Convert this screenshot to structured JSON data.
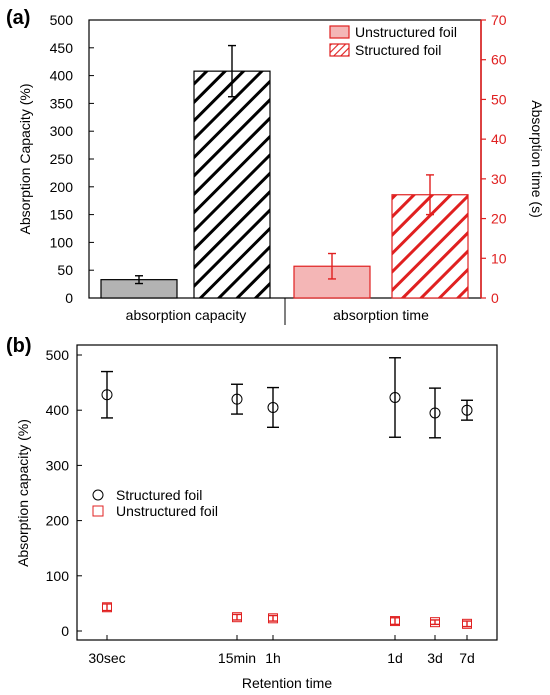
{
  "colors": {
    "black": "#000000",
    "red": "#e02020",
    "unstructured_fill": "#f4b6b6",
    "unstructured_gray": "#b3b3b3"
  },
  "chart_data": [
    {
      "type": "bar",
      "panel_label": "(a)",
      "categories": [
        "absorption capacity",
        "absorption time"
      ],
      "ylabel": "Absorption Capacity (%)",
      "ylabel_right": "Absorption time (s)",
      "ylim": [
        0,
        500
      ],
      "yticks": [
        0,
        50,
        100,
        150,
        200,
        250,
        300,
        350,
        400,
        450,
        500
      ],
      "ylim_right": [
        0,
        70
      ],
      "yticks_right": [
        0,
        10,
        20,
        30,
        40,
        50,
        60,
        70
      ],
      "legend_position": "top-right",
      "series": [
        {
          "name": "Unstructured foil",
          "values": [
            33,
            8
          ],
          "errors": [
            7,
            3.2
          ],
          "axes": [
            "left",
            "right"
          ]
        },
        {
          "name": "Structured foil",
          "values": [
            408,
            26
          ],
          "errors": [
            46,
            5
          ],
          "axes": [
            "left",
            "right"
          ]
        }
      ]
    },
    {
      "type": "scatter",
      "panel_label": "(b)",
      "xlabel": "Retention time",
      "ylabel": "Absorption capacity (%)",
      "x": [
        "30sec",
        "15min",
        "1h",
        "1d",
        "3d",
        "7d"
      ],
      "ylim": [
        0,
        500
      ],
      "yticks": [
        0,
        100,
        200,
        300,
        400,
        500
      ],
      "legend_position": "middle-left",
      "series": [
        {
          "name": "Structured foil",
          "values": [
            428,
            420,
            405,
            423,
            395,
            400
          ],
          "errors": [
            42,
            27,
            36,
            72,
            45,
            18
          ]
        },
        {
          "name": "Unstructured foil",
          "values": [
            43,
            25,
            23,
            18,
            16,
            13
          ],
          "errors": [
            6,
            5,
            5,
            6,
            4,
            5
          ]
        }
      ]
    }
  ]
}
